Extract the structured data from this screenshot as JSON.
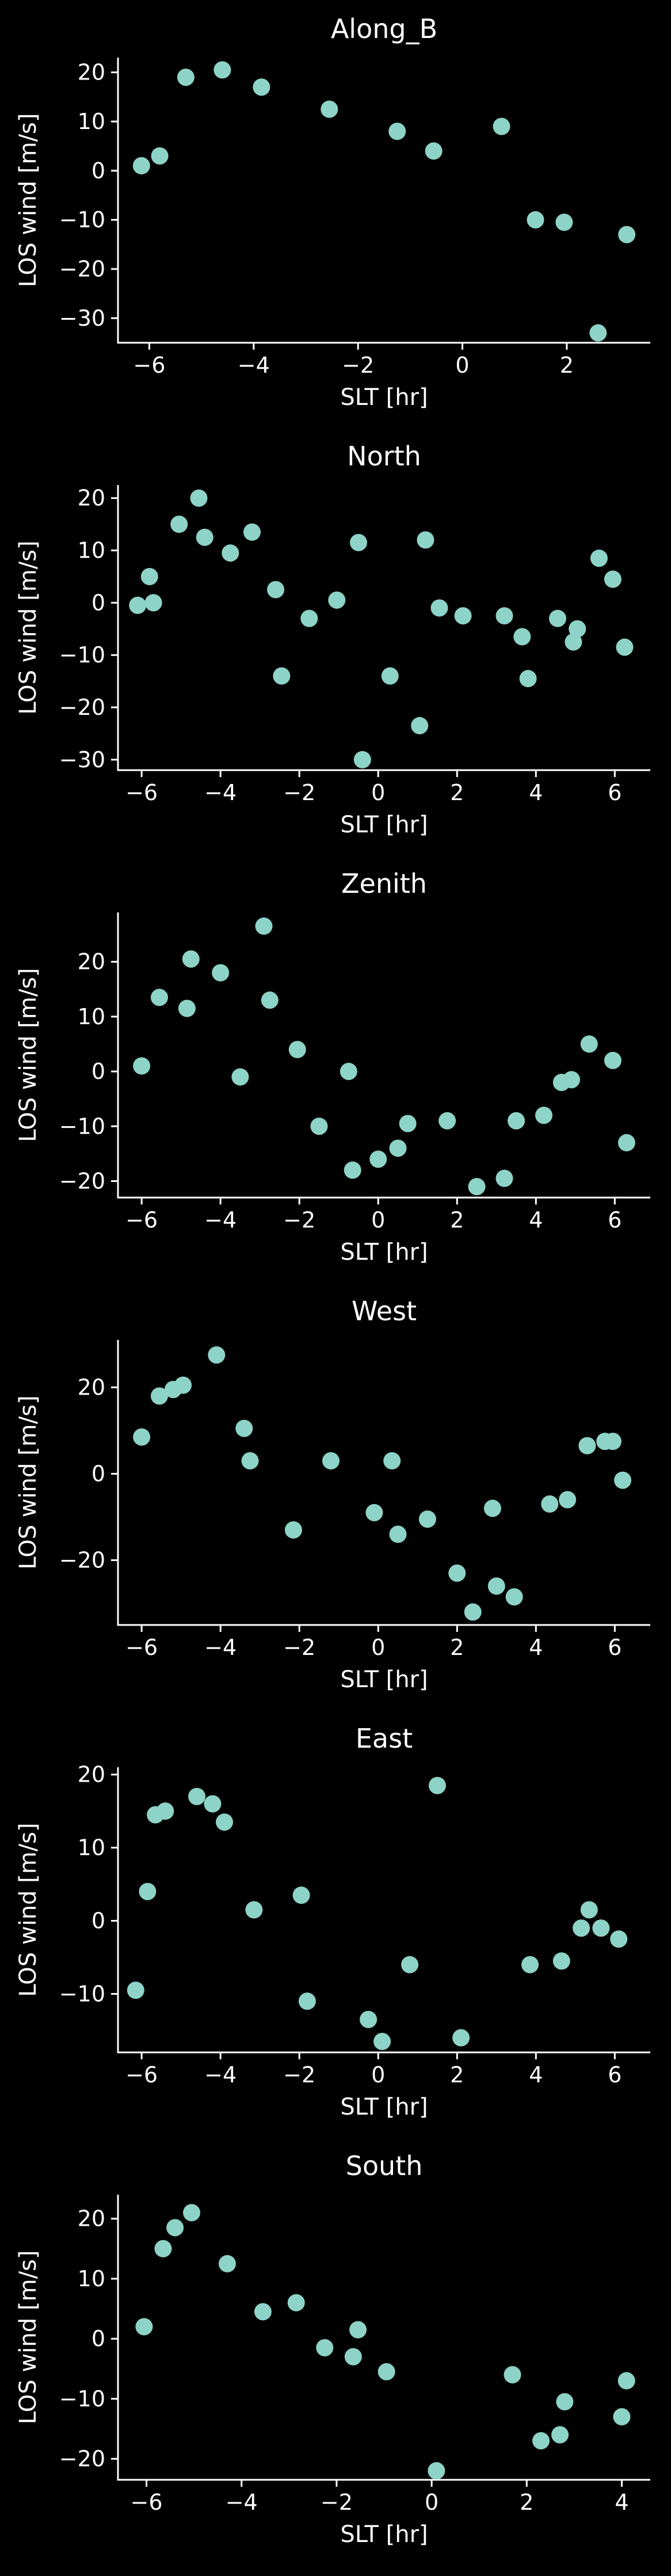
{
  "chart_data": [
    {
      "type": "scatter",
      "title": "Along_B",
      "xlabel": "SLT [hr]",
      "ylabel": "LOS wind [m/s]",
      "xlim": [
        -6.6,
        3.6
      ],
      "ylim": [
        -35,
        23
      ],
      "xticks": [
        -6,
        -4,
        -2,
        0,
        2
      ],
      "yticks": [
        -30,
        -20,
        -10,
        0,
        10,
        20
      ],
      "x": [
        -6.15,
        -5.8,
        -5.3,
        -4.6,
        -3.85,
        -2.55,
        -1.25,
        -0.55,
        0.75,
        1.4,
        1.95,
        2.6,
        3.15
      ],
      "y": [
        1,
        3,
        19,
        20.5,
        17,
        12.5,
        8,
        4,
        9,
        -10,
        -10.5,
        -33,
        -13
      ],
      "color": "#8dd3c7",
      "grid": false
    },
    {
      "type": "scatter",
      "title": "North",
      "xlabel": "SLT [hr]",
      "ylabel": "LOS wind [m/s]",
      "xlim": [
        -6.6,
        6.9
      ],
      "ylim": [
        -32,
        22.5
      ],
      "xticks": [
        -6,
        -4,
        -2,
        0,
        2,
        4,
        6
      ],
      "yticks": [
        -30,
        -20,
        -10,
        0,
        10,
        20
      ],
      "x": [
        -6.1,
        -5.8,
        -5.7,
        -5.05,
        -4.55,
        -4.4,
        -3.75,
        -3.2,
        -2.6,
        -2.45,
        -1.75,
        -1.05,
        -0.5,
        -0.4,
        0.3,
        1.05,
        1.2,
        1.55,
        2.15,
        3.2,
        3.65,
        3.8,
        4.55,
        4.95,
        5.05,
        5.6,
        5.95,
        6.25
      ],
      "y": [
        -0.5,
        5,
        0,
        15,
        20,
        12.5,
        9.5,
        13.5,
        2.5,
        -14,
        -3,
        0.5,
        11.5,
        -30,
        -14,
        -23.5,
        12,
        -1,
        -2.5,
        -2.5,
        -6.5,
        -14.5,
        -3,
        -7.5,
        -5,
        8.5,
        4.5,
        -8.5
      ],
      "color": "#8dd3c7",
      "grid": false
    },
    {
      "type": "scatter",
      "title": "Zenith",
      "xlabel": "SLT [hr]",
      "ylabel": "LOS wind [m/s]",
      "xlim": [
        -6.6,
        6.9
      ],
      "ylim": [
        -23,
        29
      ],
      "xticks": [
        -6,
        -4,
        -2,
        0,
        2,
        4,
        6
      ],
      "yticks": [
        -20,
        -10,
        0,
        10,
        20
      ],
      "x": [
        -6.0,
        -5.55,
        -4.85,
        -4.75,
        -4.0,
        -3.5,
        -2.9,
        -2.75,
        -2.05,
        -1.5,
        -0.75,
        -0.65,
        0,
        0.5,
        0.75,
        1.75,
        2.5,
        3.2,
        3.5,
        4.2,
        4.65,
        4.9,
        5.35,
        5.95,
        6.3
      ],
      "y": [
        1,
        13.5,
        11.5,
        20.5,
        18,
        -1,
        26.5,
        13,
        4,
        -10,
        0,
        -18,
        -16,
        -14,
        -9.5,
        -9,
        -21,
        -19.5,
        -9,
        -8,
        -2,
        -1.5,
        5,
        2,
        -13
      ],
      "color": "#8dd3c7",
      "grid": false
    },
    {
      "type": "scatter",
      "title": "West",
      "xlabel": "SLT [hr]",
      "ylabel": "LOS wind [m/s]",
      "xlim": [
        -6.6,
        6.9
      ],
      "ylim": [
        -35,
        31
      ],
      "xticks": [
        -6,
        -4,
        -2,
        0,
        2,
        4,
        6
      ],
      "yticks": [
        -20,
        0,
        20
      ],
      "x": [
        -6.0,
        -5.55,
        -5.2,
        -4.95,
        -4.1,
        -3.4,
        -3.25,
        -2.15,
        -1.2,
        -0.1,
        0.35,
        0.5,
        1.25,
        2.0,
        2.4,
        2.9,
        3.0,
        3.45,
        4.35,
        4.8,
        5.3,
        5.75,
        5.95,
        6.2
      ],
      "y": [
        8.5,
        18,
        19.5,
        20.5,
        27.5,
        10.5,
        3,
        -13,
        3,
        -9,
        3,
        -14,
        -10.5,
        -23,
        -32,
        -8,
        -26,
        -28.5,
        -7,
        -6,
        6.5,
        7.5,
        7.5,
        -1.5
      ],
      "color": "#8dd3c7",
      "grid": false
    },
    {
      "type": "scatter",
      "title": "East",
      "xlabel": "SLT [hr]",
      "ylabel": "LOS wind [m/s]",
      "xlim": [
        -6.6,
        6.9
      ],
      "ylim": [
        -18,
        21
      ],
      "xticks": [
        -6,
        -4,
        -2,
        0,
        2,
        4,
        6
      ],
      "yticks": [
        -10,
        0,
        10,
        20
      ],
      "x": [
        -6.15,
        -5.85,
        -5.65,
        -5.4,
        -4.6,
        -4.2,
        -3.9,
        -3.15,
        -1.95,
        -1.8,
        -0.25,
        0.1,
        0.8,
        1.5,
        2.1,
        3.85,
        4.65,
        5.15,
        5.35,
        5.65,
        6.1
      ],
      "y": [
        -9.5,
        4,
        14.5,
        15,
        17,
        16,
        13.5,
        1.5,
        3.5,
        -11,
        -13.5,
        -16.5,
        -6,
        18.5,
        -16,
        -6,
        -5.5,
        -1,
        1.5,
        -1,
        -2.5
      ],
      "color": "#8dd3c7",
      "grid": false
    },
    {
      "type": "scatter",
      "title": "South",
      "xlabel": "SLT [hr]",
      "ylabel": "LOS wind [m/s]",
      "xlim": [
        -6.6,
        4.6
      ],
      "ylim": [
        -23.5,
        24
      ],
      "xticks": [
        -6,
        -4,
        -2,
        0,
        2,
        4
      ],
      "yticks": [
        -20,
        -10,
        0,
        10,
        20
      ],
      "x": [
        -6.05,
        -5.65,
        -5.4,
        -5.05,
        -4.3,
        -3.55,
        -2.85,
        -2.25,
        -1.65,
        -1.55,
        -0.95,
        0.1,
        1.7,
        2.3,
        2.7,
        2.8,
        4.0,
        4.1
      ],
      "y": [
        2,
        15,
        18.5,
        21,
        12.5,
        4.5,
        6,
        -1.5,
        -3,
        1.5,
        -5.5,
        -22,
        -6,
        -17,
        -16,
        -10.5,
        -13,
        -7
      ],
      "color": "#8dd3c7",
      "grid": false
    }
  ]
}
